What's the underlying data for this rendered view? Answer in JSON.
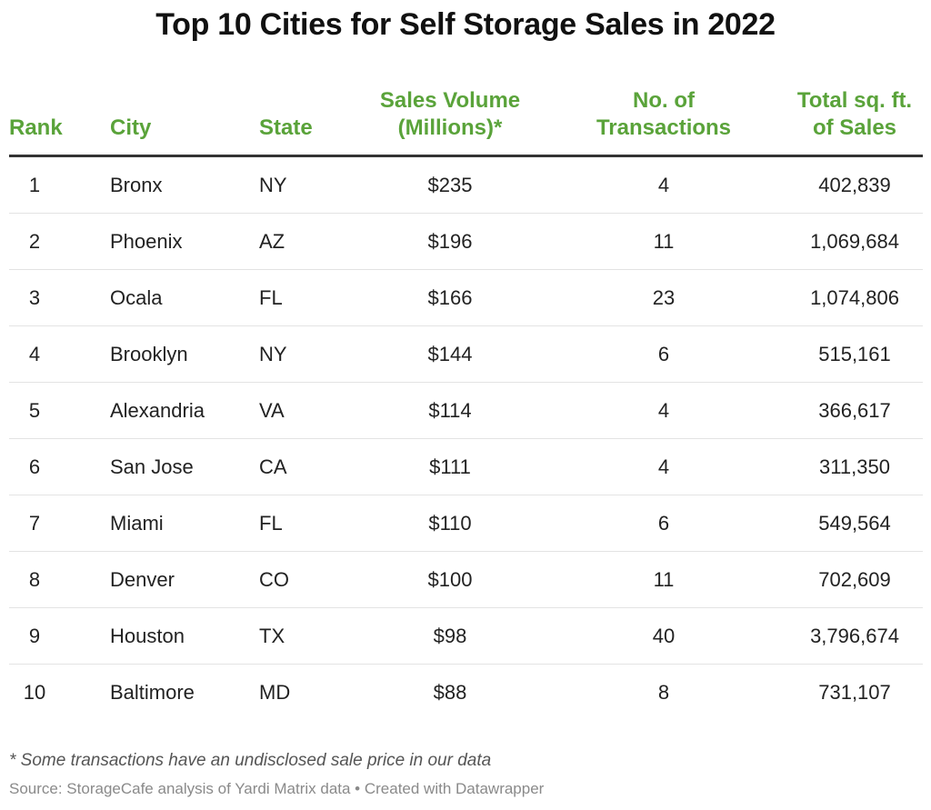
{
  "chart_data": {
    "type": "table",
    "title": "Top 10 Cities for Self Storage Sales in 2022",
    "columns": [
      "Rank",
      "City",
      "State",
      "Sales Volume (Millions)*",
      "No. of Transactions",
      "Total sq. ft. of Sales"
    ],
    "header_lines": [
      [
        "Rank"
      ],
      [
        "City"
      ],
      [
        "State"
      ],
      [
        "Sales Volume",
        "(Millions)*"
      ],
      [
        "No. of",
        "Transactions"
      ],
      [
        "Total sq. ft.",
        "of Sales"
      ]
    ],
    "rows": [
      [
        "1",
        "Bronx",
        "NY",
        "$235",
        "4",
        "402,839"
      ],
      [
        "2",
        "Phoenix",
        "AZ",
        "$196",
        "11",
        "1,069,684"
      ],
      [
        "3",
        "Ocala",
        "FL",
        "$166",
        "23",
        "1,074,806"
      ],
      [
        "4",
        "Brooklyn",
        "NY",
        "$144",
        "6",
        "515,161"
      ],
      [
        "5",
        "Alexandria",
        "VA",
        "$114",
        "4",
        "366,617"
      ],
      [
        "6",
        "San Jose",
        "CA",
        "$111",
        "4",
        "311,350"
      ],
      [
        "7",
        "Miami",
        "FL",
        "$110",
        "6",
        "549,564"
      ],
      [
        "8",
        "Denver",
        "CO",
        "$100",
        "11",
        "702,609"
      ],
      [
        "9",
        "Houston",
        "TX",
        "$98",
        "40",
        "3,796,674"
      ],
      [
        "10",
        "Baltimore",
        "MD",
        "$88",
        "8",
        "731,107"
      ]
    ],
    "footnote": "* Some transactions have an undisclosed sale price in our data",
    "source": "Source: StorageCafe analysis of Yardi Matrix data • Created with Datawrapper",
    "colors": {
      "header": "#5aa33a",
      "rule": "#333333",
      "row_divider": "#e3e3e3"
    }
  }
}
